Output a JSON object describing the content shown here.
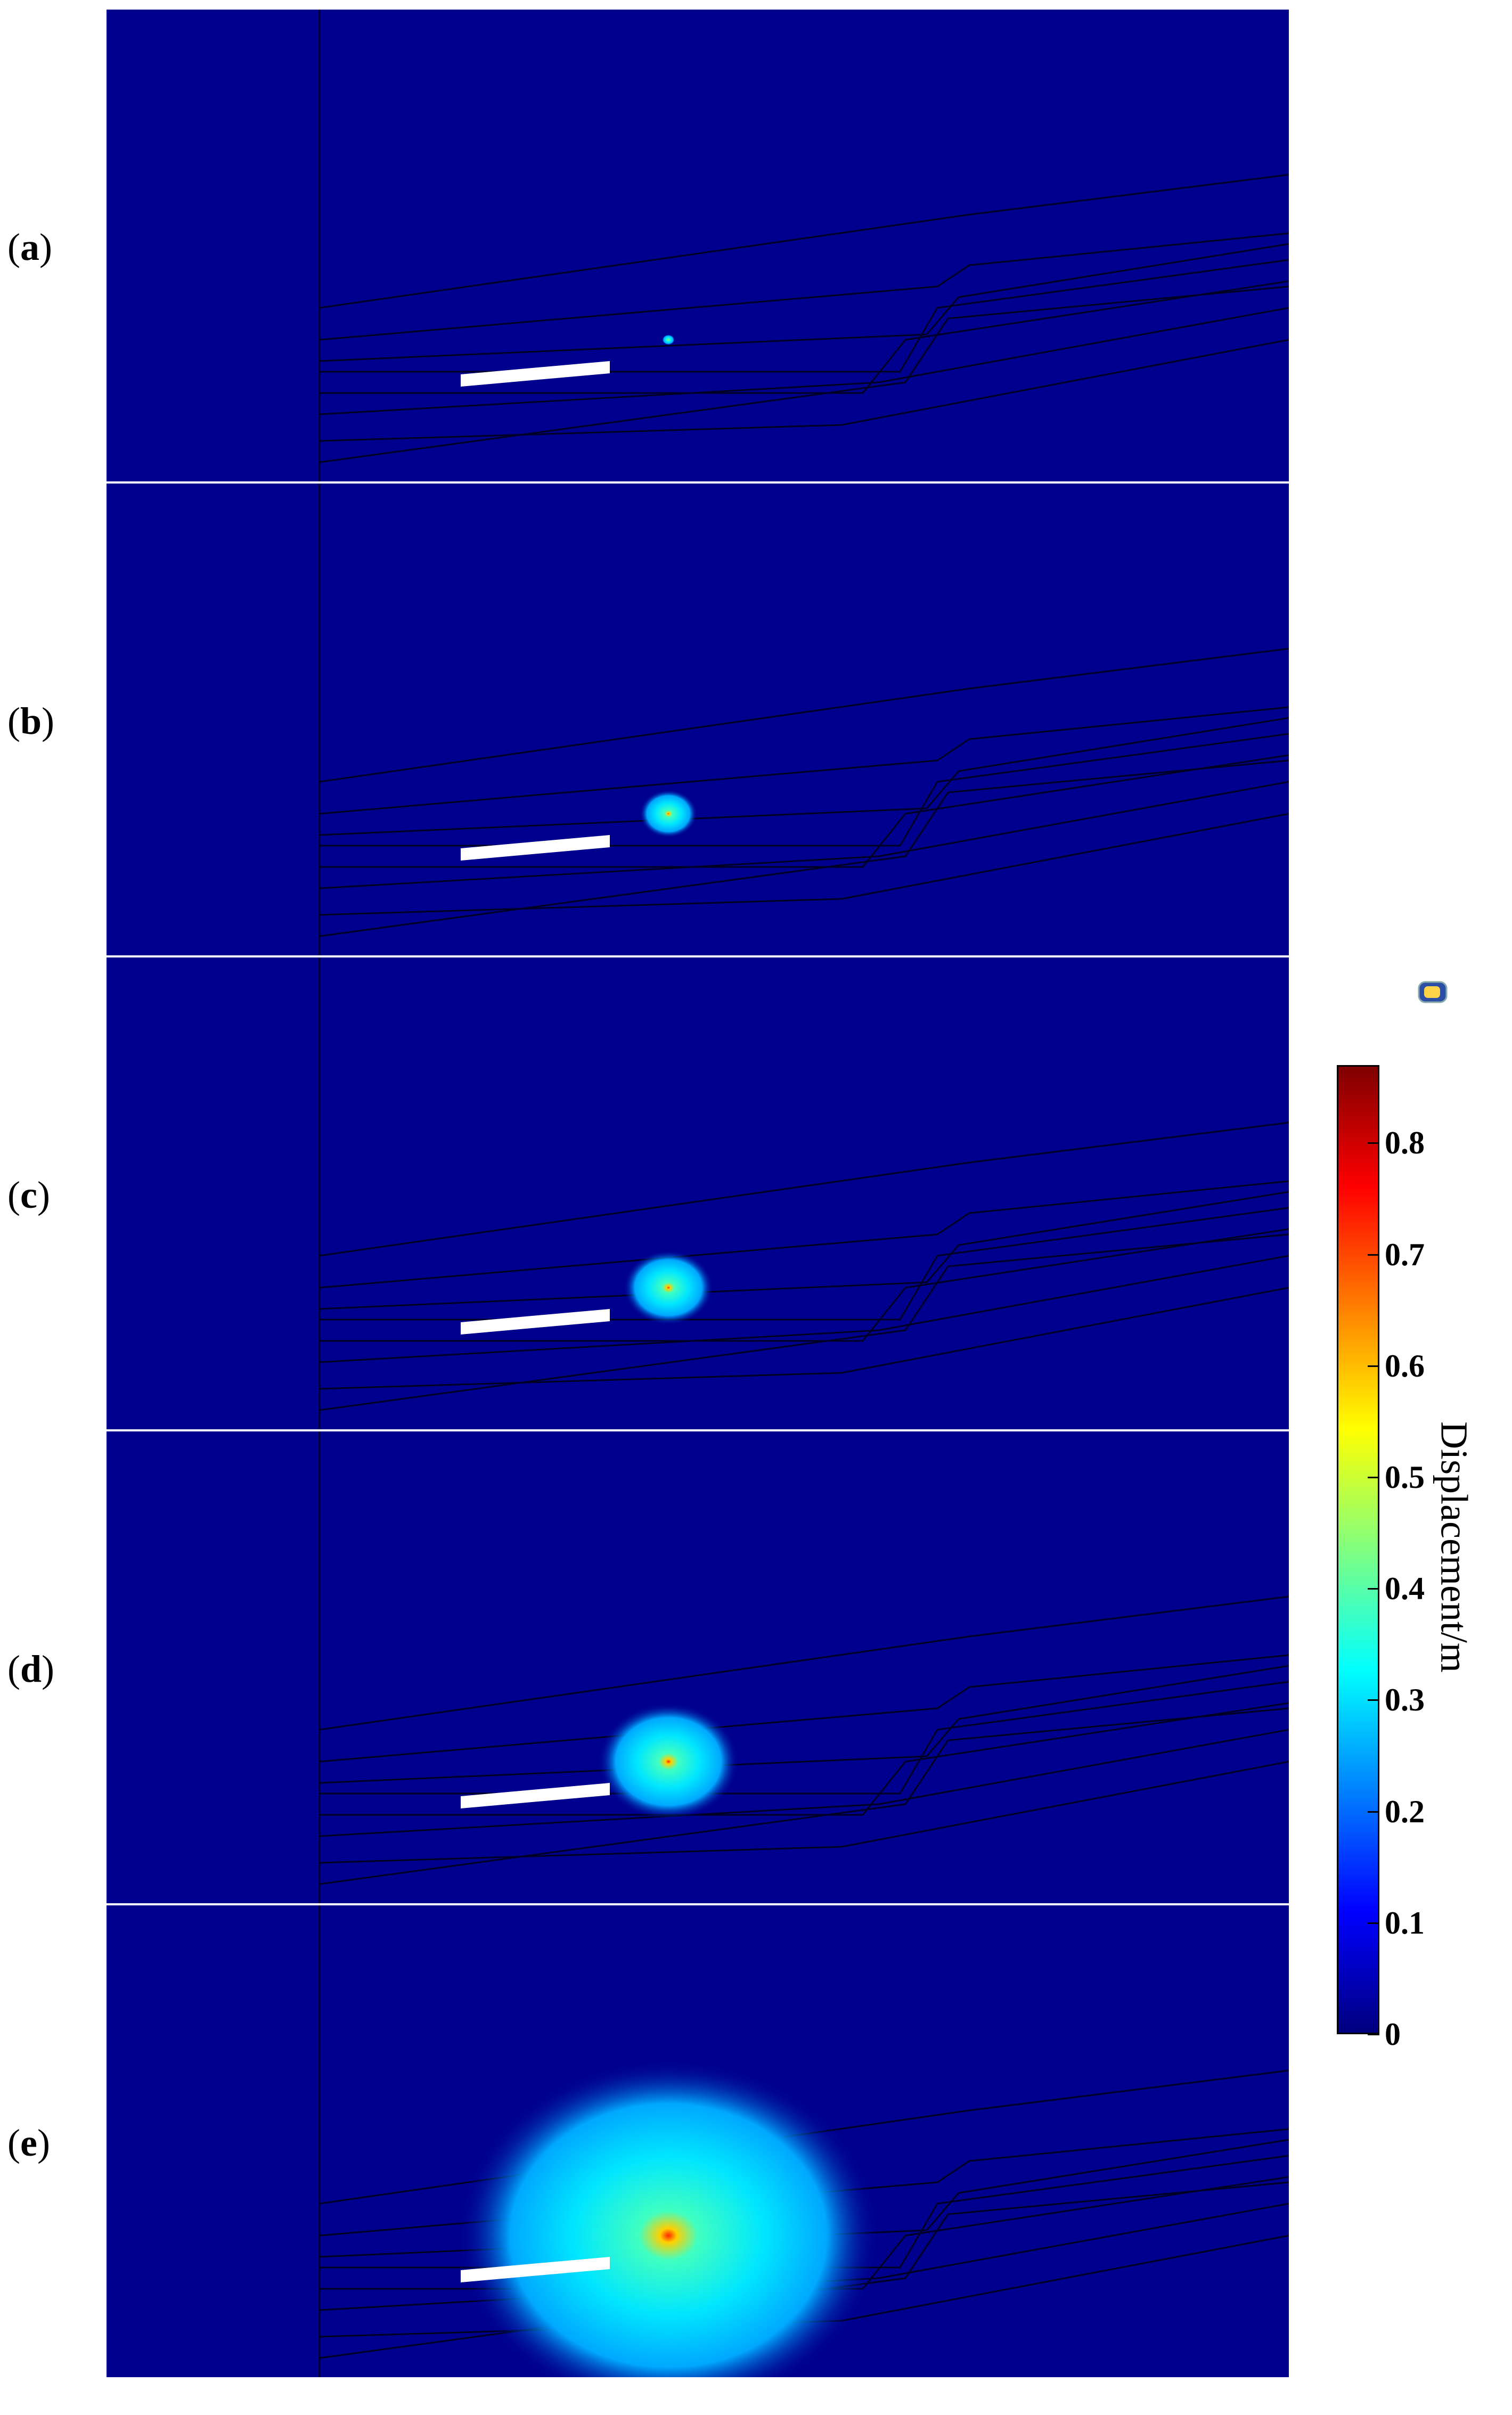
{
  "panels": [
    {
      "label": "(",
      "letter": "a",
      "close": ")",
      "radius": 10
    },
    {
      "label": "(",
      "letter": "b",
      "close": ")",
      "radius": 45
    },
    {
      "label": "(",
      "letter": "c",
      "close": ")",
      "radius": 70
    },
    {
      "label": "(",
      "letter": "d",
      "close": ")",
      "radius": 110
    },
    {
      "label": "(",
      "letter": "e",
      "close": ")",
      "radius": 330
    }
  ],
  "colorbar": {
    "title": "Displacement/m",
    "ticks": [
      "0",
      "0.1",
      "0.2",
      "0.3",
      "0.4",
      "0.5",
      "0.6",
      "0.7",
      "0.8"
    ],
    "min": 0,
    "max": 0.87,
    "colormap": [
      "#00007f",
      "#0000ff",
      "#0080ff",
      "#00ffff",
      "#80ff80",
      "#ffff00",
      "#ff8000",
      "#ff0000",
      "#7f0000"
    ]
  },
  "colors": {
    "background": "#00008f",
    "strata": "#000000",
    "tunnel": "#ffffff"
  },
  "icon": "colorbar-toggle-icon"
}
